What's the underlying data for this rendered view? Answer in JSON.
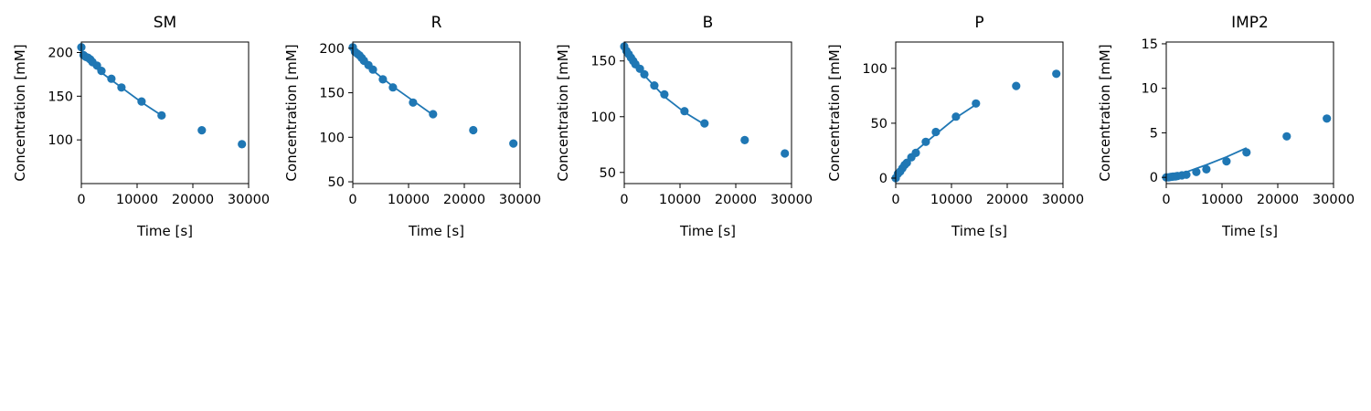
{
  "chart_data": [
    {
      "type": "scatter",
      "title": "SM",
      "xlabel": "Time [s]",
      "ylabel": "Concentration [mM]",
      "xlim": [
        0,
        30000
      ],
      "ylim": [
        50,
        212
      ],
      "xticks": [
        0,
        10000,
        20000,
        30000
      ],
      "yticks": [
        100,
        150,
        200
      ],
      "color": "#1f77b4",
      "points": {
        "x": [
          0,
          400,
          800,
          1200,
          1600,
          2000,
          2800,
          3600,
          5400,
          7200,
          10800,
          14400,
          21600,
          28800
        ],
        "y": [
          206,
          197,
          195,
          194,
          192,
          189,
          185,
          179,
          170,
          160,
          144,
          128,
          111,
          95
        ]
      },
      "fit": {
        "x": [
          0,
          3600,
          7200,
          10800,
          14400
        ],
        "y": [
          197,
          177,
          160,
          143,
          128
        ]
      }
    },
    {
      "type": "scatter",
      "title": "R",
      "xlabel": "Time [s]",
      "ylabel": "Concentration [mM]",
      "xlim": [
        0,
        30000
      ],
      "ylim": [
        48,
        207
      ],
      "xticks": [
        0,
        10000,
        20000,
        30000
      ],
      "yticks": [
        50,
        100,
        150,
        200
      ],
      "color": "#1f77b4",
      "points": {
        "x": [
          0,
          400,
          800,
          1200,
          1600,
          2000,
          2800,
          3600,
          5400,
          7200,
          10800,
          14400,
          21600,
          28800
        ],
        "y": [
          201,
          196,
          194,
          192,
          189,
          186,
          181,
          176,
          165,
          156,
          139,
          126,
          108,
          93
        ]
      },
      "fit": {
        "x": [
          0,
          3600,
          7200,
          10800,
          14400
        ],
        "y": [
          200,
          175,
          157,
          141,
          125
        ]
      }
    },
    {
      "type": "scatter",
      "title": "B",
      "xlabel": "Time [s]",
      "ylabel": "Concentration [mM]",
      "xlim": [
        0,
        30000
      ],
      "ylim": [
        40,
        167
      ],
      "xticks": [
        0,
        10000,
        20000,
        30000
      ],
      "yticks": [
        50,
        100,
        150
      ],
      "color": "#1f77b4",
      "points": {
        "x": [
          0,
          400,
          800,
          1200,
          1600,
          2000,
          2800,
          3600,
          5400,
          7200,
          10800,
          14400,
          21600,
          28800
        ],
        "y": [
          163,
          159,
          156,
          153,
          150,
          147,
          143,
          138,
          128,
          120,
          105,
          94,
          79,
          67
        ]
      },
      "fit": {
        "x": [
          0,
          3600,
          7200,
          10800,
          14400
        ],
        "y": [
          162,
          137,
          118,
          104,
          93
        ]
      }
    },
    {
      "type": "scatter",
      "title": "P",
      "xlabel": "Time [s]",
      "ylabel": "Concentration [mM]",
      "xlim": [
        0,
        30000
      ],
      "ylim": [
        -5,
        124
      ],
      "xticks": [
        0,
        10000,
        20000,
        30000
      ],
      "yticks": [
        0,
        50,
        100
      ],
      "color": "#1f77b4",
      "points": {
        "x": [
          0,
          400,
          800,
          1200,
          1600,
          2000,
          2800,
          3600,
          5400,
          7200,
          10800,
          14400,
          21600,
          28800
        ],
        "y": [
          0,
          4,
          6,
          9,
          12,
          14,
          19,
          23,
          33,
          42,
          56,
          68,
          84,
          95
        ]
      },
      "fit": {
        "x": [
          0,
          3600,
          7200,
          10800,
          14400
        ],
        "y": [
          0,
          25,
          40,
          55,
          67
        ]
      }
    },
    {
      "type": "scatter",
      "title": "IMP2",
      "xlabel": "Time [s]",
      "ylabel": "Concentration [mM]",
      "xlim": [
        0,
        30000
      ],
      "ylim": [
        -0.7,
        15.2
      ],
      "xticks": [
        0,
        10000,
        20000,
        30000
      ],
      "yticks": [
        0,
        5,
        10,
        15
      ],
      "color": "#1f77b4",
      "points": {
        "x": [
          0,
          400,
          800,
          1200,
          1600,
          2000,
          2800,
          3600,
          5400,
          7200,
          10800,
          14400,
          21600,
          28800
        ],
        "y": [
          0,
          0,
          0.05,
          0.08,
          0.1,
          0.15,
          0.22,
          0.3,
          0.6,
          0.9,
          1.8,
          2.8,
          4.6,
          6.6
        ]
      },
      "fit": {
        "x": [
          0,
          3600,
          7200,
          10800,
          14400
        ],
        "y": [
          0,
          0.6,
          1.4,
          2.3,
          3.3
        ]
      }
    }
  ]
}
